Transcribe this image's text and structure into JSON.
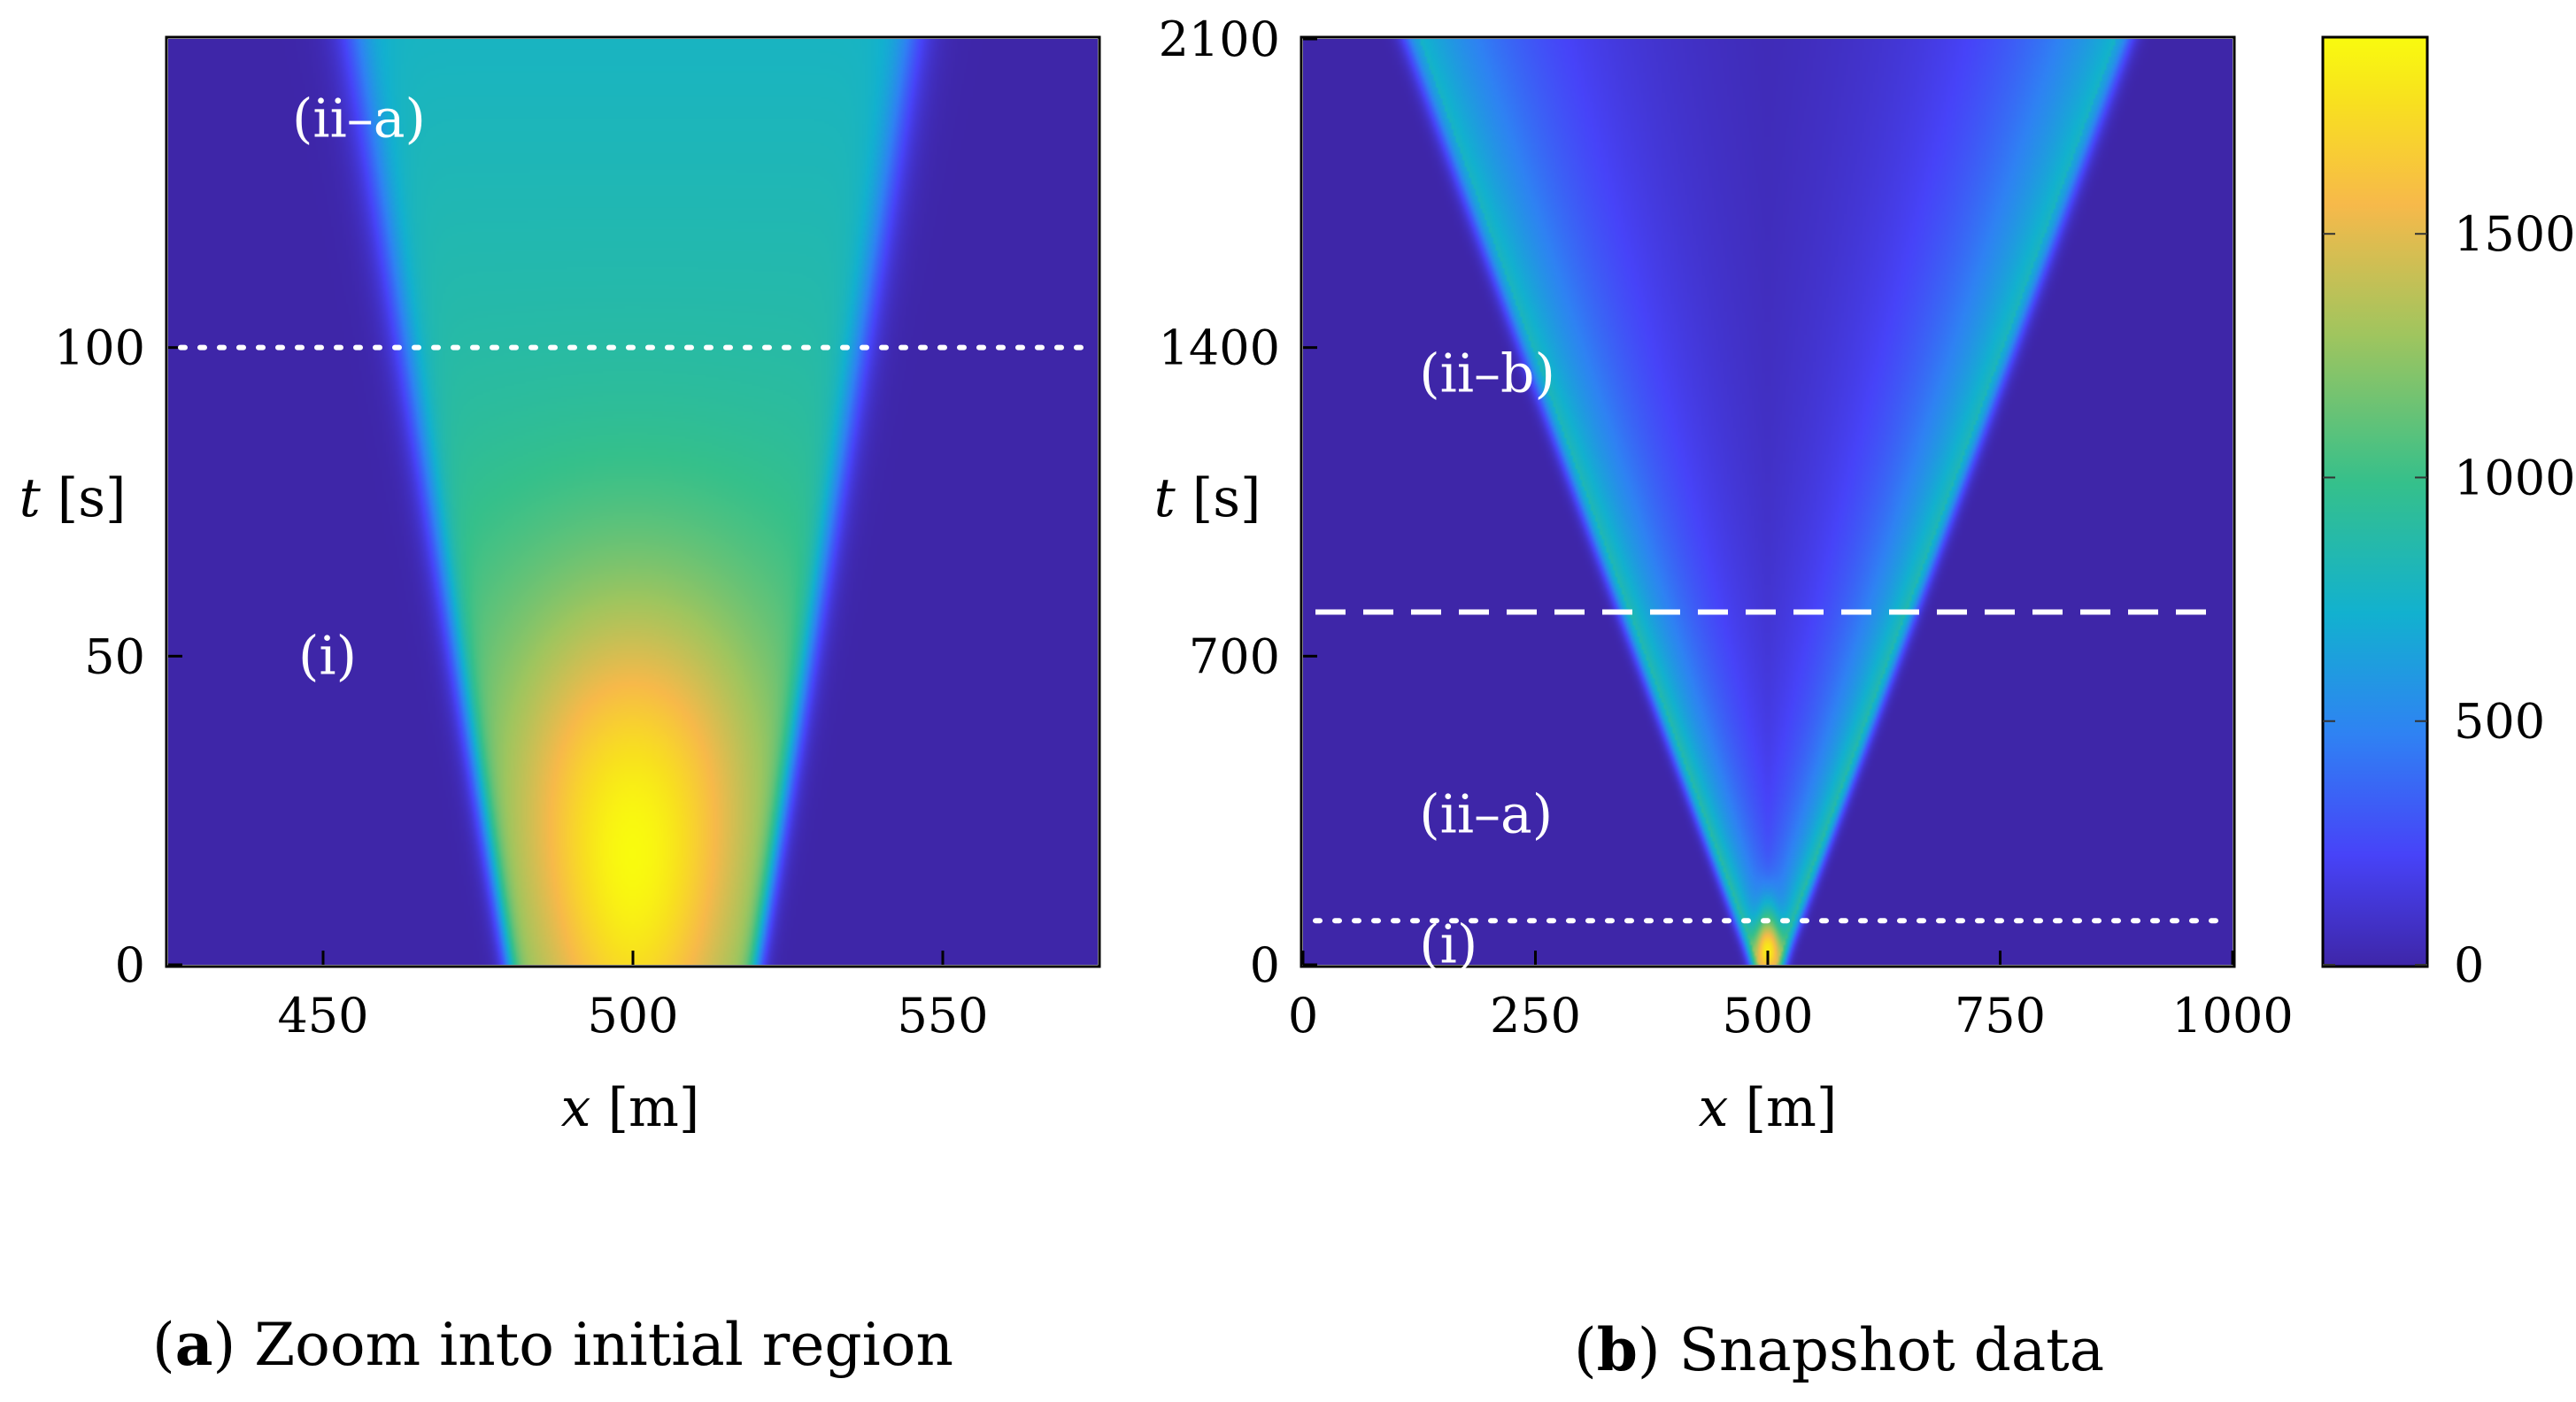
{
  "chart_data": [
    {
      "type": "heatmap",
      "panel": "a",
      "caption_letter": "a",
      "caption_text": "Zoom into initial region",
      "xlabel_var": "x",
      "xlabel_unit": "[m]",
      "ylabel_var": "t",
      "ylabel_unit": "[s]",
      "xlim": [
        425,
        575
      ],
      "ylim": [
        0,
        150
      ],
      "xticks": [
        450,
        500,
        550
      ],
      "xtick_labels": [
        "450",
        "500",
        "550"
      ],
      "yticks": [
        0,
        50,
        100
      ],
      "ytick_labels": [
        "0",
        "50",
        "100"
      ],
      "peak_value": 1900,
      "peak_location": {
        "x": 500,
        "t": 20
      },
      "front_left": [
        {
          "t": 0,
          "x": 480
        },
        {
          "t": 150,
          "x": 455
        }
      ],
      "front_right": [
        {
          "t": 0,
          "x": 520
        },
        {
          "t": 150,
          "x": 545
        }
      ],
      "reference_lines": [
        {
          "style": "dotted",
          "t": 100,
          "color": "#ffffff"
        }
      ],
      "annotations": [
        {
          "text": "(ii–a)",
          "x": 445,
          "t": 137
        },
        {
          "text": "(i)",
          "x": 446,
          "t": 50
        }
      ]
    },
    {
      "type": "heatmap",
      "panel": "b",
      "caption_letter": "b",
      "caption_text": "Snapshot data",
      "xlabel_var": "x",
      "xlabel_unit": "[m]",
      "ylabel_var": "t",
      "ylabel_unit": "[s]",
      "xlim": [
        0,
        1000
      ],
      "ylim": [
        0,
        2100
      ],
      "xticks": [
        0,
        250,
        500,
        750,
        1000
      ],
      "xtick_labels": [
        "0",
        "250",
        "500",
        "750",
        "1000"
      ],
      "yticks": [
        0,
        700,
        1400,
        2100
      ],
      "ytick_labels": [
        "0",
        "700",
        "1400",
        "2100"
      ],
      "peak_value": 1700,
      "peak_location": {
        "x": 500,
        "t": 30
      },
      "front_left": [
        {
          "t": 0,
          "x": 490
        },
        {
          "t": 2100,
          "x": 125
        }
      ],
      "front_right": [
        {
          "t": 0,
          "x": 510
        },
        {
          "t": 2100,
          "x": 875
        }
      ],
      "reference_lines": [
        {
          "style": "dashed",
          "t": 800,
          "color": "#ffffff"
        },
        {
          "style": "dotted",
          "t": 100,
          "color": "#ffffff"
        }
      ],
      "annotations": [
        {
          "text": "(ii–b)",
          "x": 125,
          "t": 1340
        },
        {
          "text": "(ii–a)",
          "x": 125,
          "t": 340
        },
        {
          "text": "(i)",
          "x": 125,
          "t": 45
        }
      ]
    }
  ],
  "colorbar": {
    "colormap": "parula",
    "range": [
      0,
      1900
    ],
    "ticks": [
      0,
      500,
      1000,
      1500
    ],
    "tick_labels": [
      "0",
      "500",
      "1000",
      "1500"
    ],
    "stops": [
      "#3e26a8",
      "#4743f8",
      "#2f82f3",
      "#12b1cf",
      "#35c08b",
      "#a0c55e",
      "#f7b94a",
      "#f8e01f",
      "#f9fb0e"
    ]
  }
}
